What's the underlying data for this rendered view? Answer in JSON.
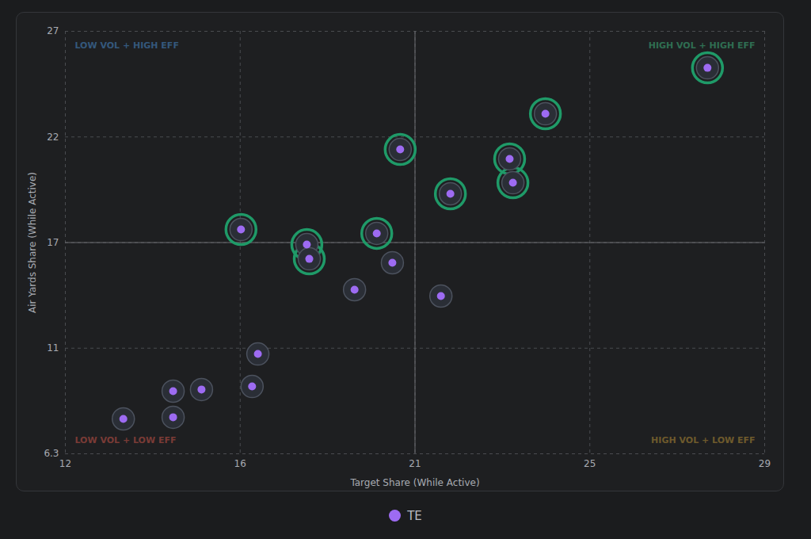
{
  "chart_data": {
    "type": "scatter",
    "x_label": "Target Share (While Active)",
    "y_label": "Air Yards Share (While Active)",
    "xlim": [
      12,
      29
    ],
    "xticks": [
      12,
      {
        "value": 16.25,
        "label": "16"
      },
      {
        "value": 20.5,
        "label": "21"
      },
      {
        "value": 24.75,
        "label": "25"
      },
      29
    ],
    "ylim": [
      6.3,
      27
    ],
    "yticks": [
      6.3,
      {
        "value": 11.475,
        "label": "11"
      },
      {
        "value": 16.65,
        "label": "17"
      },
      {
        "value": 21.825,
        "label": "22"
      },
      27
    ],
    "grid": true,
    "x_divider": 20.5,
    "y_divider": 16.65,
    "x": [
      27.61,
      23.67,
      22.8,
      22.88,
      21.36,
      20.14,
      19.57,
      19.95,
      21.13,
      19.03,
      16.27,
      17.87,
      17.93,
      16.68,
      16.54,
      15.31,
      14.62,
      14.62,
      13.41
    ],
    "series": [
      {
        "name": "TE",
        "color": "#9d6bf2",
        "marker": "circle",
        "values": [
          25.21,
          22.96,
          20.75,
          19.58,
          19.04,
          21.21,
          17.1,
          15.66,
          14.03,
          14.34,
          17.29,
          16.55,
          15.85,
          11.19,
          9.6,
          9.45,
          9.37,
          8.09,
          8.01
        ]
      }
    ],
    "highlighted": [
      true,
      true,
      true,
      true,
      true,
      true,
      true,
      false,
      false,
      false,
      true,
      true,
      true,
      false,
      false,
      false,
      false,
      false,
      false
    ],
    "annotations": [
      {
        "text": "LOW VOL + HIGH EFF",
        "position": "top-left",
        "color": "#34587c"
      },
      {
        "text": "HIGH VOL + HIGH EFF",
        "position": "top-right",
        "color": "#2f6e52"
      },
      {
        "text": "LOW VOL + LOW EFF",
        "position": "bottom-left",
        "color": "#7a3b36"
      },
      {
        "text": "HIGH VOL + LOW EFF",
        "position": "bottom-right",
        "color": "#6e5a2c"
      }
    ],
    "legend": "bottom"
  }
}
